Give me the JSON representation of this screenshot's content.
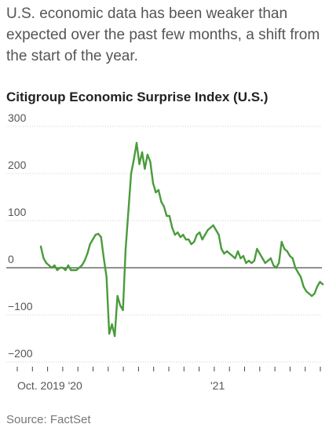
{
  "subhead": "U.S. economic data has been weaker than expected over the past few months, a shift from the start of the year.",
  "source": "Source: FactSet",
  "chart_data": {
    "type": "line",
    "title": "Citigroup Economic Surprise Index (U.S.)",
    "xlabel": "",
    "ylabel": "",
    "ylim": [
      -200,
      300
    ],
    "y_ticks": [
      300,
      200,
      100,
      0,
      -100,
      -200
    ],
    "x_tick_labels": [
      "Oct. 2019 '20",
      "'21"
    ],
    "zero_line": true,
    "series_color": "#4a9b3c",
    "series": [
      {
        "x": [
          0,
          1,
          2,
          3,
          4,
          5,
          6,
          7,
          8,
          9,
          10,
          11,
          12,
          13,
          14,
          15,
          16,
          17,
          18,
          19,
          20,
          21,
          22,
          23,
          24,
          25,
          26,
          27,
          28,
          29,
          30,
          31,
          32,
          33,
          34,
          35,
          36,
          37,
          38,
          39,
          40,
          41,
          42,
          43,
          44,
          45,
          46,
          47,
          48,
          49,
          50,
          51,
          52,
          53,
          54,
          55,
          56,
          57,
          58,
          59,
          60,
          61,
          62,
          63,
          64,
          65,
          66,
          67,
          68,
          69,
          70,
          71,
          72,
          73,
          74,
          75,
          76,
          77,
          78,
          79,
          80,
          81,
          82,
          83,
          84,
          85,
          86,
          87,
          88,
          89,
          90,
          91,
          92,
          93,
          94,
          95,
          96,
          97,
          98,
          99,
          100,
          101,
          102,
          103
        ],
        "values": [
          45,
          20,
          10,
          5,
          0,
          5,
          -5,
          0,
          0,
          -5,
          5,
          -5,
          -5,
          -5,
          0,
          5,
          15,
          30,
          50,
          60,
          70,
          72,
          65,
          20,
          -20,
          -140,
          -120,
          -145,
          -60,
          -80,
          -90,
          40,
          120,
          200,
          230,
          265,
          220,
          245,
          210,
          240,
          225,
          180,
          160,
          165,
          140,
          130,
          110,
          110,
          85,
          70,
          75,
          65,
          70,
          60,
          60,
          50,
          55,
          70,
          75,
          60,
          70,
          80,
          85,
          90,
          80,
          70,
          40,
          30,
          35,
          30,
          25,
          20,
          35,
          20,
          25,
          10,
          15,
          10,
          15,
          40,
          30,
          20,
          10,
          15,
          20,
          5,
          0,
          10,
          55,
          40,
          35,
          25,
          20,
          0,
          -10,
          -20,
          -40,
          -50,
          -55,
          -60,
          -55,
          -40,
          -30,
          -35
        ]
      }
    ]
  }
}
